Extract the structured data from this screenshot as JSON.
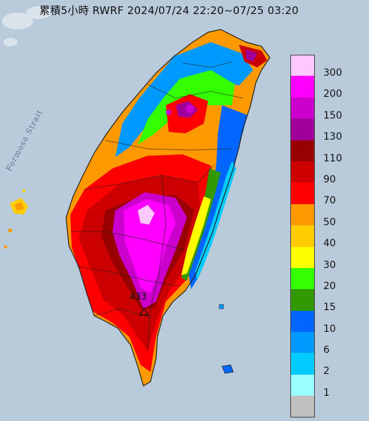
{
  "title": "累積5小時 RWRF 2024/07/24 22:20~07/25 03:20",
  "strait_label": "Formosa Strait",
  "peak": {
    "value": "433",
    "marker_icon": "triangle-up-icon"
  },
  "legend": [
    {
      "label": "300",
      "color": "#fdc8fd"
    },
    {
      "label": "200",
      "color": "#ff00ff"
    },
    {
      "label": "150",
      "color": "#cc00cc"
    },
    {
      "label": "130",
      "color": "#9e0099"
    },
    {
      "label": "110",
      "color": "#990000"
    },
    {
      "label": "90",
      "color": "#cc0000"
    },
    {
      "label": "70",
      "color": "#ff0000"
    },
    {
      "label": "50",
      "color": "#ff9900"
    },
    {
      "label": "40",
      "color": "#ffcc00"
    },
    {
      "label": "30",
      "color": "#ffff00"
    },
    {
      "label": "20",
      "color": "#33ff00"
    },
    {
      "label": "15",
      "color": "#339900"
    },
    {
      "label": "10",
      "color": "#0066ff"
    },
    {
      "label": "6",
      "color": "#0099ff"
    },
    {
      "label": "2",
      "color": "#00ccff"
    },
    {
      "label": "1",
      "color": "#99ffff"
    },
    {
      "label": "",
      "color": "#c0c0c0"
    }
  ]
}
